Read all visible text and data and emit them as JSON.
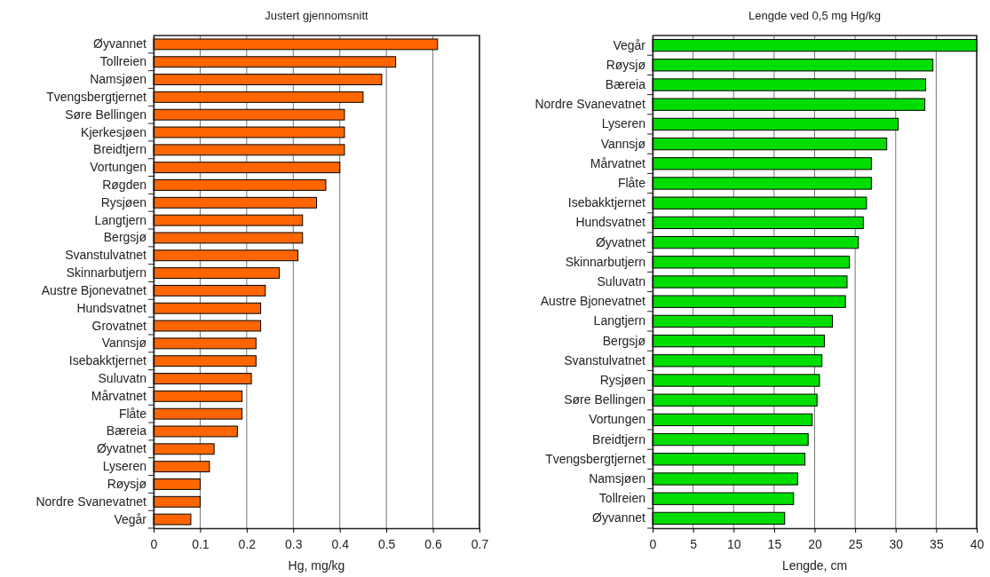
{
  "chart_data": [
    {
      "type": "bar",
      "orientation": "horizontal",
      "title": "Justert gjennomsnitt",
      "xlabel": "Hg, mg/kg",
      "categories": [
        "Øyvannet",
        "Tollreien",
        "Namsjøen",
        "Tvengsbergtjernet",
        "Søre Bellingen",
        "Kjerkesjøen",
        "Breidtjern",
        "Vortungen",
        "Røgden",
        "Rysjøen",
        "Langtjern",
        "Bergsjø",
        "Svanstulvatnet",
        "Skinnarbutjern",
        "Austre Bjonevatnet",
        "Hundsvatnet",
        "Grovatnet",
        "Vannsjø",
        "Isebakktjernet",
        "Suluvatn",
        "Mårvatnet",
        "Flåte",
        "Bæreia",
        "Øyvatnet",
        "Lyseren",
        "Røysjø",
        "Nordre Svanevatnet",
        "Vegår"
      ],
      "values": [
        0.61,
        0.52,
        0.49,
        0.45,
        0.41,
        0.41,
        0.41,
        0.4,
        0.37,
        0.35,
        0.32,
        0.32,
        0.31,
        0.27,
        0.24,
        0.23,
        0.23,
        0.22,
        0.22,
        0.21,
        0.19,
        0.19,
        0.18,
        0.13,
        0.12,
        0.1,
        0.1,
        0.08
      ],
      "color": "#ff6600",
      "xlim": [
        0,
        0.7
      ],
      "xticks": [
        0,
        0.1,
        0.2,
        0.3,
        0.4,
        0.5,
        0.6,
        0.7
      ],
      "grid": "x"
    },
    {
      "type": "bar",
      "orientation": "horizontal",
      "title": "Lengde ved 0,5 mg Hg/kg",
      "xlabel": "Lengde, cm",
      "categories": [
        "Vegår",
        "Røysjø",
        "Bæreia",
        "Nordre Svanevatnet",
        "Lyseren",
        "Vannsjø",
        "Mårvatnet",
        "Flåte",
        "Isebakktjernet",
        "Hundsvatnet",
        "Øyvatnet",
        "Skinnarbutjern",
        "Suluvatn",
        "Austre Bjonevatnet",
        "Langtjern",
        "Bergsjø",
        "Svanstulvatnet",
        "Rysjøen",
        "Søre Bellingen",
        "Vortungen",
        "Breidtjern",
        "Tvengsbergtjernet",
        "Namsjøen",
        "Tollreien",
        "Øyvannet"
      ],
      "values": [
        40,
        34.6,
        33.7,
        33.6,
        30.3,
        28.9,
        27.0,
        27.0,
        26.4,
        26.0,
        25.4,
        24.3,
        24.0,
        23.8,
        22.2,
        21.2,
        20.9,
        20.6,
        20.3,
        19.7,
        19.2,
        18.8,
        17.9,
        17.4,
        16.3
      ],
      "color": "#00dd00",
      "xlim": [
        0,
        40
      ],
      "xticks": [
        0,
        5,
        10,
        15,
        20,
        25,
        30,
        35,
        40
      ],
      "grid": "x"
    }
  ]
}
